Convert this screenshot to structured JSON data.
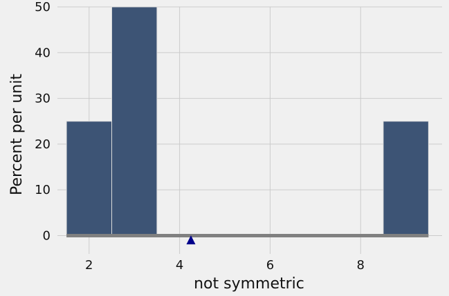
{
  "chart_data": {
    "type": "bar",
    "title": "",
    "xlabel": "not symmetric",
    "ylabel": "Percent per unit",
    "xlim": [
      1.3,
      9.8
    ],
    "ylim": [
      -4,
      50
    ],
    "x_ticks": [
      2,
      4,
      6,
      8
    ],
    "x_tick_labels": [
      "2",
      "4",
      "6",
      "8"
    ],
    "y_ticks": [
      0,
      10,
      20,
      30,
      40,
      50
    ],
    "y_tick_labels": [
      "0",
      "10",
      "20",
      "30",
      "40",
      "50"
    ],
    "grid": true,
    "bins": [
      {
        "start": 1.5,
        "end": 2.5,
        "value": 25
      },
      {
        "start": 2.5,
        "end": 3.5,
        "value": 50
      },
      {
        "start": 8.5,
        "end": 9.5,
        "value": 25
      }
    ],
    "baseline": {
      "start": 1.5,
      "end": 9.5,
      "value": 0
    },
    "mean_marker": {
      "x": 4.25,
      "y": -1
    },
    "colors": {
      "bar": "#3d5475",
      "bar_edge": "#dcdcdc",
      "baseline": "#808080",
      "marker": "#00008b",
      "grid": "#cbcbcb",
      "background": "#f0f0f0"
    }
  }
}
